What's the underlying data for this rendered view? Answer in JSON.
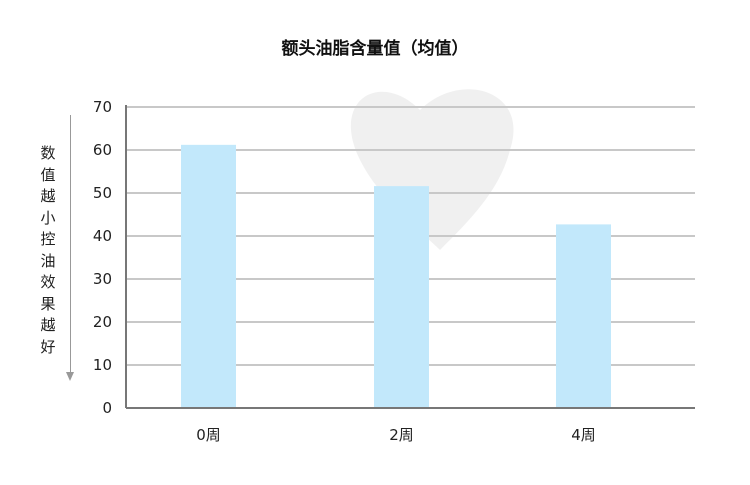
{
  "chart_data": {
    "type": "bar",
    "title": "额头油脂含量值（均值）",
    "ylabel": "数值越小控油效果越好",
    "xlabel": "",
    "categories": [
      "0周",
      "2周",
      "4周"
    ],
    "values": [
      61.2,
      51.6,
      42.7
    ],
    "ylim": [
      0,
      70
    ],
    "yticks": [
      0,
      10,
      20,
      30,
      40,
      50,
      60,
      70
    ],
    "grid": true,
    "bar_color": "#c2e8fb",
    "grid_color": "#c8c8c8"
  }
}
